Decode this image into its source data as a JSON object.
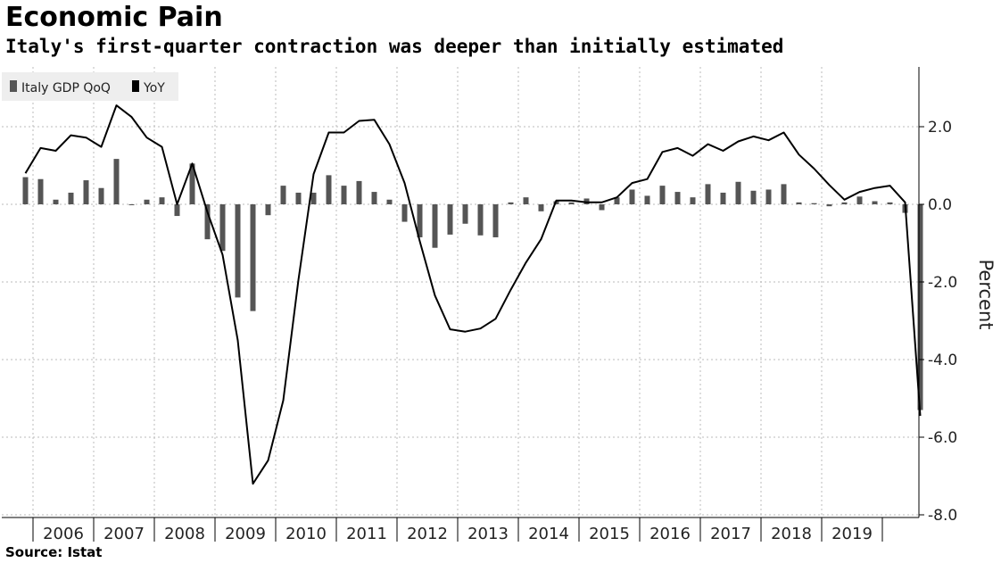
{
  "header": {
    "title": "Economic Pain",
    "subtitle": "Italy's first-quarter contraction was deeper than initially estimated"
  },
  "footer": {
    "source": "Source: Istat"
  },
  "colors": {
    "bar": "#555555",
    "line": "#000000",
    "grid": "#bbbbbb",
    "legend_bg": "#eeeeee"
  },
  "chart_data": {
    "type": "bar+line",
    "title": "Economic Pain",
    "subtitle": "Italy's first-quarter contraction was deeper than initially estimated",
    "ylabel": "Percent",
    "ylim": [
      -8.0,
      3.5
    ],
    "yticks": [
      2.0,
      0.0,
      -2.0,
      -4.0,
      -6.0,
      -8.0
    ],
    "ytick_labels": [
      "2.0",
      "0.0",
      "-2.0",
      "-4.0",
      "-6.0",
      "-8.0"
    ],
    "years": [
      "2006",
      "2007",
      "2008",
      "2009",
      "2010",
      "2011",
      "2012",
      "2013",
      "2014",
      "2015",
      "2016",
      "2017",
      "2018",
      "2019"
    ],
    "quarters_start": "2005-Q4",
    "legend": [
      {
        "label": "Italy GDP QoQ",
        "color": "#555555"
      },
      {
        "label": "YoY",
        "color": "#000000"
      }
    ],
    "series": [
      {
        "name": "Italy GDP QoQ",
        "type": "bar",
        "values": [
          0.7,
          0.65,
          0.12,
          0.3,
          0.62,
          0.42,
          1.17,
          0.0,
          0.12,
          0.18,
          -0.3,
          1.05,
          -0.9,
          -1.2,
          -2.4,
          -2.75,
          -0.28,
          0.48,
          0.3,
          0.3,
          0.75,
          0.48,
          0.6,
          0.32,
          0.12,
          -0.45,
          -0.85,
          -1.12,
          -0.78,
          -0.5,
          -0.8,
          -0.85,
          0.05,
          0.18,
          -0.18,
          0.08,
          0.05,
          0.15,
          -0.15,
          0.18,
          0.38,
          0.22,
          0.48,
          0.32,
          0.18,
          0.52,
          0.3,
          0.58,
          0.35,
          0.38,
          0.52,
          0.05,
          0.03,
          -0.05,
          0.05,
          0.2,
          0.08,
          0.05,
          -0.22,
          -5.3
        ]
      },
      {
        "name": "YoY",
        "type": "line",
        "values": [
          0.8,
          1.45,
          1.38,
          1.78,
          1.72,
          1.48,
          2.55,
          2.25,
          1.72,
          1.48,
          0.0,
          1.05,
          -0.2,
          -1.3,
          -3.5,
          -7.2,
          -6.6,
          -5.05,
          -1.95,
          0.78,
          1.85,
          1.85,
          2.15,
          2.18,
          1.55,
          0.55,
          -0.95,
          -2.35,
          -3.22,
          -3.28,
          -3.2,
          -2.95,
          -2.2,
          -1.5,
          -0.9,
          0.1,
          0.1,
          0.05,
          0.05,
          0.18,
          0.55,
          0.65,
          1.35,
          1.45,
          1.25,
          1.55,
          1.38,
          1.62,
          1.75,
          1.65,
          1.85,
          1.28,
          0.92,
          0.5,
          0.12,
          0.32,
          0.42,
          0.48,
          0.05,
          -5.45
        ]
      }
    ]
  }
}
